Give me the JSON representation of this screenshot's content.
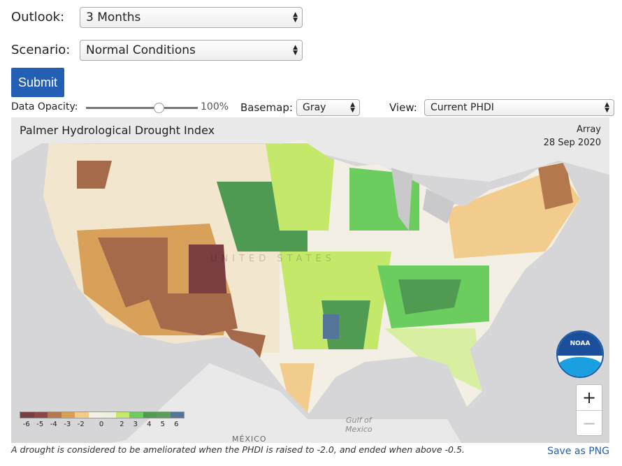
{
  "form": {
    "outlook_label": "Outlook:",
    "outlook_value": "3 Months",
    "scenario_label": "Scenario:",
    "scenario_value": "Normal Conditions",
    "submit_label": "Submit"
  },
  "controls": {
    "opacity_label": "Data Opacity:",
    "opacity_value": "100%",
    "opacity_fraction": 1.0,
    "basemap_label": "Basemap:",
    "basemap_value": "Gray",
    "view_label": "View:",
    "view_value": "Current PHDI"
  },
  "map": {
    "title": "Palmer Hydrological Drought Index",
    "subtitle": "Array",
    "date": "28 Sep 2020",
    "country_label": "UNITED STATES",
    "mexico_label": "MÉXICO",
    "gulf_label_1": "Gulf of",
    "gulf_label_2": "Mexico",
    "logo_text": "NOAA",
    "zoom_in": "+",
    "zoom_out": "−",
    "legend": {
      "colors": [
        "#7a3e40",
        "#8c4747",
        "#b3784c",
        "#d99f57",
        "#f1cc8c",
        "#f2efe6",
        "#edf0df",
        "#c4e86a",
        "#6ccd5f",
        "#509a52",
        "#5a9e5a",
        "#55749a"
      ],
      "ticks": [
        "-6",
        "-5",
        "-4",
        "-3",
        "-2",
        "0",
        "2",
        "3",
        "4",
        "5",
        "6"
      ]
    }
  },
  "footer": {
    "note": "A drought is considered to be ameliorated when the PHDI is raised to -2.0, and ended when above -0.5.",
    "save_label": "Save as PNG"
  }
}
